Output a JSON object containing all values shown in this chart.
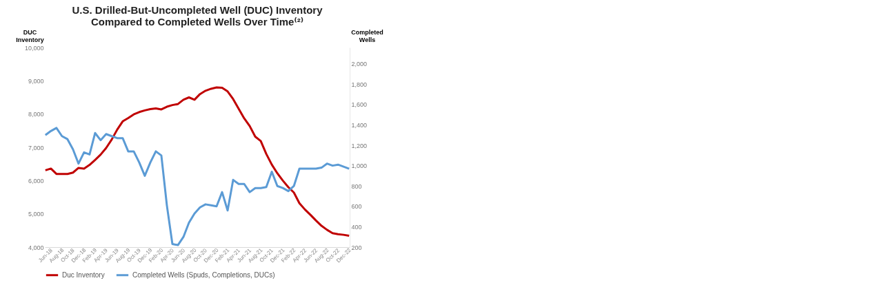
{
  "chart_data": {
    "type": "line",
    "title": "U.S. Drilled-But-Uncompleted Well (DUC) Inventory\nCompared to Completed Wells Over Time⁽²⁾",
    "ylabel": "DUC\nInventory",
    "y2label": "Completed\nWells",
    "categories": [
      "Jun-18",
      null,
      "Aug-18",
      null,
      "Oct-18",
      null,
      "Dec-18",
      null,
      "Feb-19",
      null,
      "Apr-19",
      null,
      "Jun-19",
      null,
      "Aug-19",
      null,
      "Oct-19",
      null,
      "Dec-19",
      null,
      "Feb-20",
      null,
      "Apr-20",
      null,
      "Jun-20",
      null,
      "Aug-20",
      null,
      "Oct-20",
      null,
      "Dec-20",
      null,
      "Feb-21",
      null,
      "Apr-21",
      null,
      "Jun-21",
      null,
      "Aug-21",
      null,
      "Oct-21",
      null,
      "Dec-21",
      null,
      "Feb-22",
      null,
      "Apr-22",
      null,
      "Jun-22",
      null,
      "Aug-22",
      null,
      "Oct-22",
      null,
      "Dec-22",
      null
    ],
    "series": [
      {
        "name": "Duc Inventory",
        "color": "#c00000",
        "values": [
          6310,
          6360,
          6200,
          6200,
          6200,
          6240,
          6380,
          6360,
          6470,
          6620,
          6780,
          6980,
          7230,
          7530,
          7780,
          7880,
          7990,
          8060,
          8110,
          8150,
          8170,
          8140,
          8220,
          8270,
          8300,
          8430,
          8500,
          8430,
          8600,
          8700,
          8760,
          8800,
          8790,
          8680,
          8450,
          8160,
          7870,
          7640,
          7320,
          7190,
          6800,
          6480,
          6220,
          6000,
          5800,
          5640,
          5320,
          5130,
          4970,
          4800,
          4640,
          4520,
          4420,
          4390,
          4370,
          4340
        ]
      },
      {
        "name": "Completed Wells (Spuds, Completions, DUCs)",
        "color": "#5b9bd5",
        "axis": "y2",
        "values": [
          1300,
          1340,
          1370,
          1290,
          1260,
          1160,
          1020,
          1130,
          1110,
          1320,
          1250,
          1310,
          1290,
          1270,
          1270,
          1140,
          1140,
          1030,
          900,
          1030,
          1140,
          1100,
          610,
          230,
          220,
          300,
          440,
          530,
          590,
          620,
          610,
          600,
          740,
          560,
          860,
          820,
          820,
          740,
          780,
          780,
          790,
          940,
          800,
          780,
          750,
          800,
          970,
          970,
          970,
          970,
          980,
          1020,
          1000,
          1010,
          990,
          970
        ]
      }
    ],
    "ylim": [
      4000,
      10000
    ],
    "yticks": [
      {
        "value": 4000,
        "label": "4,000"
      },
      {
        "value": 5000,
        "label": "5,000"
      },
      {
        "value": 6000,
        "label": "6,000"
      },
      {
        "value": 7000,
        "label": "7,000"
      },
      {
        "value": 8000,
        "label": "8,000"
      },
      {
        "value": 9000,
        "label": "9,000"
      },
      {
        "value": 10000,
        "label": "10,000"
      }
    ],
    "y2lim": [
      200,
      2160
    ],
    "y2ticks": [
      200,
      400,
      600,
      800,
      {
        "value": 1000,
        "label": "1,000"
      },
      {
        "value": 1200,
        "label": "1,200"
      },
      {
        "value": 1400,
        "label": "1,400"
      },
      {
        "value": 1600,
        "label": "1,600"
      },
      {
        "value": 1800,
        "label": "1,800"
      },
      {
        "value": 2000,
        "label": "2,000"
      }
    ],
    "legend": "bottom"
  }
}
